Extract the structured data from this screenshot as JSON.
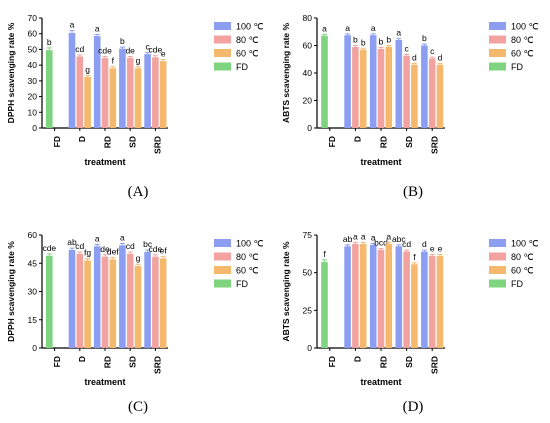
{
  "chart_data": [
    {
      "panel": "(A)",
      "type": "bar",
      "ylabel": "DPPH scavenging rate %",
      "xlabel": "treatment",
      "categories": [
        "FD",
        "D",
        "RD",
        "SD",
        "SRD"
      ],
      "ylim": [
        0,
        70
      ],
      "yticks": [
        "0",
        "10",
        "20",
        "30",
        "40",
        "50",
        "60",
        "70"
      ],
      "series": [
        {
          "name": "100 ℃",
          "color": "#8c9ef2",
          "values": [
            null,
            60.5,
            58.5,
            50.5,
            47.0
          ],
          "errors": [
            null,
            1.5,
            1.0,
            1.0,
            1.0
          ]
        },
        {
          "name": "80 ℃",
          "color": "#f2a3a0",
          "values": [
            null,
            45.5,
            44.5,
            44.5,
            45.0
          ],
          "errors": [
            null,
            1.0,
            1.0,
            1.0,
            1.0
          ]
        },
        {
          "name": "60 ℃",
          "color": "#f5b96e",
          "values": [
            null,
            32.5,
            38.0,
            38.0,
            42.5
          ],
          "errors": [
            null,
            1.0,
            1.0,
            1.0,
            1.0
          ]
        },
        {
          "name": "FD",
          "color": "#7fd47f",
          "values": [
            49.5,
            null,
            null,
            null,
            null
          ],
          "errors": [
            1.5,
            null,
            null,
            null,
            null
          ]
        }
      ],
      "annotations": [
        {
          "category": "FD",
          "series": "FD",
          "text": "b"
        },
        {
          "category": "D",
          "series": "100 ℃",
          "text": "a"
        },
        {
          "category": "D",
          "series": "80 ℃",
          "text": "cd"
        },
        {
          "category": "D",
          "series": "60 ℃",
          "text": "g"
        },
        {
          "category": "RD",
          "series": "100 ℃",
          "text": "a"
        },
        {
          "category": "RD",
          "series": "80 ℃",
          "text": "cde"
        },
        {
          "category": "RD",
          "series": "60 ℃",
          "text": "f"
        },
        {
          "category": "SD",
          "series": "100 ℃",
          "text": "b"
        },
        {
          "category": "SD",
          "series": "80 ℃",
          "text": "de"
        },
        {
          "category": "SD",
          "series": "60 ℃",
          "text": "g"
        },
        {
          "category": "SRD",
          "series": "100 ℃",
          "text": "c"
        },
        {
          "category": "SRD",
          "series": "80 ℃",
          "text": "cde"
        },
        {
          "category": "SRD",
          "series": "60 ℃",
          "text": "e"
        }
      ]
    },
    {
      "panel": "(B)",
      "type": "bar",
      "ylabel": "ABTS scavenging rate %",
      "xlabel": "treatment",
      "categories": [
        "FD",
        "D",
        "RD",
        "SD",
        "SRD"
      ],
      "ylim": [
        0,
        80
      ],
      "yticks": [
        "0",
        "20",
        "40",
        "60",
        "80"
      ],
      "series": [
        {
          "name": "100 ℃",
          "color": "#8c9ef2",
          "values": [
            null,
            67.5,
            67.5,
            64.0,
            60.0
          ],
          "errors": [
            null,
            1.0,
            1.0,
            1.0,
            1.0
          ]
        },
        {
          "name": "80 ℃",
          "color": "#f2a3a0",
          "values": [
            null,
            59.0,
            57.5,
            52.5,
            50.5
          ],
          "errors": [
            null,
            1.0,
            1.0,
            1.0,
            1.0
          ]
        },
        {
          "name": "60 ℃",
          "color": "#f5b96e",
          "values": [
            null,
            57.0,
            59.0,
            46.0,
            46.0
          ],
          "errors": [
            null,
            1.0,
            1.0,
            1.0,
            1.0
          ]
        },
        {
          "name": "FD",
          "color": "#7fd47f",
          "values": [
            67.0,
            null,
            null,
            null,
            null
          ],
          "errors": [
            1.0,
            null,
            null,
            null,
            null
          ]
        }
      ],
      "annotations": [
        {
          "category": "FD",
          "series": "FD",
          "text": "a"
        },
        {
          "category": "D",
          "series": "100 ℃",
          "text": "a"
        },
        {
          "category": "D",
          "series": "80 ℃",
          "text": "b"
        },
        {
          "category": "D",
          "series": "60 ℃",
          "text": "b"
        },
        {
          "category": "RD",
          "series": "100 ℃",
          "text": "a"
        },
        {
          "category": "RD",
          "series": "80 ℃",
          "text": "b"
        },
        {
          "category": "RD",
          "series": "60 ℃",
          "text": "b"
        },
        {
          "category": "SD",
          "series": "100 ℃",
          "text": "a"
        },
        {
          "category": "SD",
          "series": "80 ℃",
          "text": "c"
        },
        {
          "category": "SD",
          "series": "60 ℃",
          "text": "d"
        },
        {
          "category": "SRD",
          "series": "100 ℃",
          "text": "b"
        },
        {
          "category": "SRD",
          "series": "80 ℃",
          "text": "c"
        },
        {
          "category": "SRD",
          "series": "60 ℃",
          "text": "d"
        }
      ]
    },
    {
      "panel": "(C)",
      "type": "bar",
      "ylabel": "DPPH scavenging rate %",
      "xlabel": "treatment",
      "categories": [
        "FD",
        "D",
        "RD",
        "SD",
        "SRD"
      ],
      "ylim": [
        0,
        60
      ],
      "yticks": [
        "0",
        "15",
        "30",
        "45",
        "60"
      ],
      "series": [
        {
          "name": "100 ℃",
          "color": "#8c9ef2",
          "values": [
            null,
            52.0,
            54.0,
            54.5,
            51.0
          ],
          "errors": [
            null,
            1.0,
            1.0,
            1.0,
            1.0
          ]
        },
        {
          "name": "80 ℃",
          "color": "#f2a3a0",
          "values": [
            null,
            50.0,
            48.5,
            50.0,
            48.5
          ],
          "errors": [
            null,
            1.0,
            1.0,
            1.0,
            1.0
          ]
        },
        {
          "name": "60 ℃",
          "color": "#f5b96e",
          "values": [
            null,
            46.5,
            47.0,
            43.5,
            47.5
          ],
          "errors": [
            null,
            1.0,
            1.0,
            1.0,
            1.0
          ]
        },
        {
          "name": "FD",
          "color": "#7fd47f",
          "values": [
            49.0,
            null,
            null,
            null,
            null
          ],
          "errors": [
            1.0,
            null,
            null,
            null,
            null
          ]
        }
      ],
      "annotations": [
        {
          "category": "FD",
          "series": "FD",
          "text": "cde"
        },
        {
          "category": "D",
          "series": "100 ℃",
          "text": "ab"
        },
        {
          "category": "D",
          "series": "80 ℃",
          "text": "cd"
        },
        {
          "category": "D",
          "series": "60 ℃",
          "text": "fg"
        },
        {
          "category": "RD",
          "series": "100 ℃",
          "text": "a"
        },
        {
          "category": "RD",
          "series": "80 ℃",
          "text": "de"
        },
        {
          "category": "RD",
          "series": "60 ℃",
          "text": "def"
        },
        {
          "category": "SD",
          "series": "100 ℃",
          "text": "a"
        },
        {
          "category": "SD",
          "series": "80 ℃",
          "text": "cd"
        },
        {
          "category": "SD",
          "series": "60 ℃",
          "text": "g"
        },
        {
          "category": "SRD",
          "series": "100 ℃",
          "text": "bc"
        },
        {
          "category": "SRD",
          "series": "80 ℃",
          "text": "cde"
        },
        {
          "category": "SRD",
          "series": "60 ℃",
          "text": "ef"
        }
      ]
    },
    {
      "panel": "(D)",
      "type": "bar",
      "ylabel": "ABTS scavenging rate %",
      "xlabel": "treatment",
      "categories": [
        "FD",
        "D",
        "RD",
        "SD",
        "SRD"
      ],
      "ylim": [
        0,
        75
      ],
      "yticks": [
        "0",
        "25",
        "50",
        "75"
      ],
      "series": [
        {
          "name": "100 ℃",
          "color": "#8c9ef2",
          "values": [
            null,
            67.5,
            68.5,
            67.5,
            64.0
          ],
          "errors": [
            null,
            1.0,
            1.0,
            1.0,
            1.0
          ]
        },
        {
          "name": "80 ℃",
          "color": "#f2a3a0",
          "values": [
            null,
            69.0,
            65.0,
            64.0,
            61.0
          ],
          "errors": [
            null,
            1.0,
            1.0,
            1.0,
            1.0
          ]
        },
        {
          "name": "60 ℃",
          "color": "#f5b96e",
          "values": [
            null,
            69.0,
            69.0,
            55.5,
            61.0
          ],
          "errors": [
            null,
            1.0,
            1.0,
            1.0,
            1.0
          ]
        },
        {
          "name": "FD",
          "color": "#7fd47f",
          "values": [
            57.0,
            null,
            null,
            null,
            null
          ],
          "errors": [
            1.5,
            null,
            null,
            null,
            null
          ]
        }
      ],
      "annotations": [
        {
          "category": "FD",
          "series": "FD",
          "text": "f"
        },
        {
          "category": "D",
          "series": "100 ℃",
          "text": "ab"
        },
        {
          "category": "D",
          "series": "80 ℃",
          "text": "a"
        },
        {
          "category": "D",
          "series": "60 ℃",
          "text": "a"
        },
        {
          "category": "RD",
          "series": "100 ℃",
          "text": "a"
        },
        {
          "category": "RD",
          "series": "80 ℃",
          "text": "bcd"
        },
        {
          "category": "RD",
          "series": "60 ℃",
          "text": "a"
        },
        {
          "category": "SD",
          "series": "100 ℃",
          "text": "abc"
        },
        {
          "category": "SD",
          "series": "80 ℃",
          "text": "cd"
        },
        {
          "category": "SD",
          "series": "60 ℃",
          "text": "f"
        },
        {
          "category": "SRD",
          "series": "100 ℃",
          "text": "d"
        },
        {
          "category": "SRD",
          "series": "80 ℃",
          "text": "e"
        },
        {
          "category": "SRD",
          "series": "60 ℃",
          "text": "e"
        }
      ]
    }
  ]
}
